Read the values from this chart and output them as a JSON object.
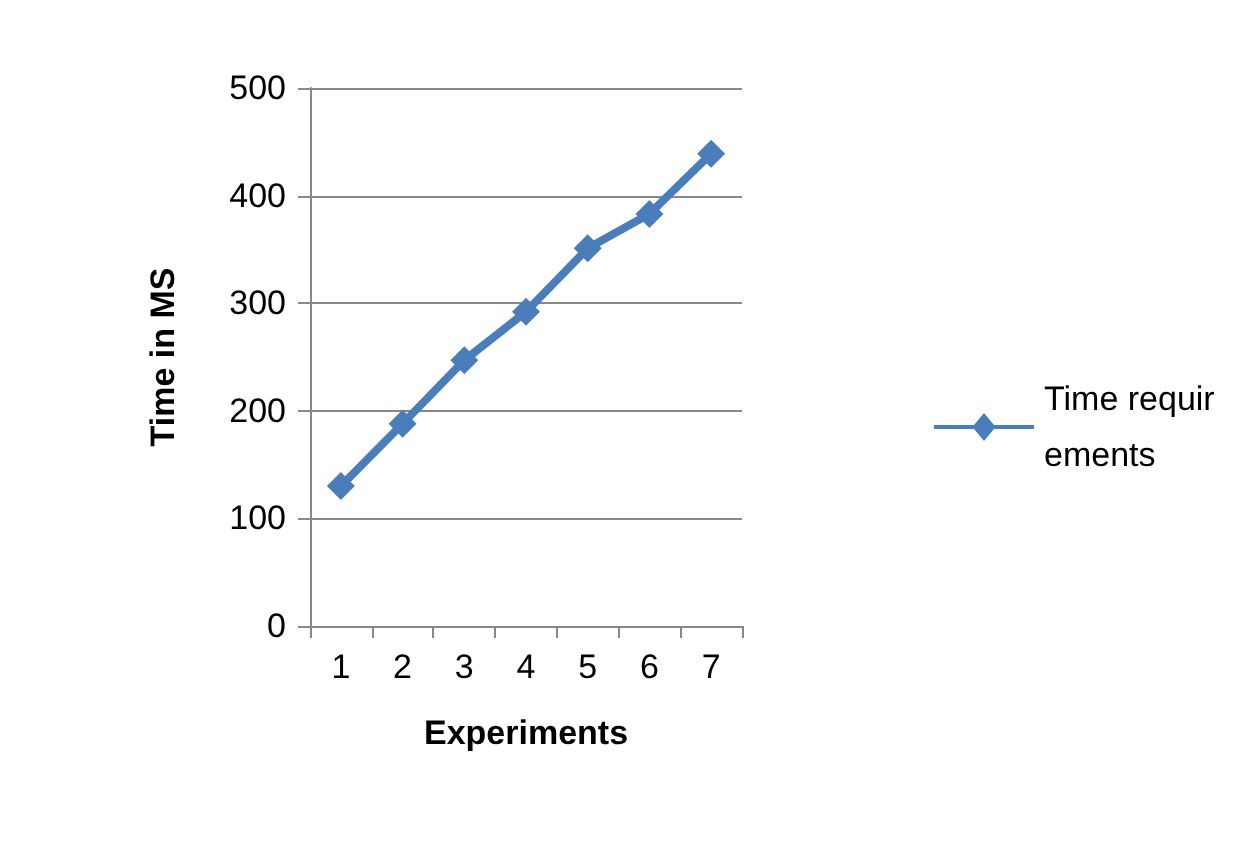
{
  "chart_data": {
    "type": "line",
    "xlabel": "Experiments",
    "ylabel": "Time in MS",
    "categories": [
      "1",
      "2",
      "3",
      "4",
      "5",
      "6",
      "7"
    ],
    "series": [
      {
        "name": "Time requirements",
        "color": "#4a7ebb",
        "values": [
          130,
          188,
          247,
          292,
          351,
          383,
          439
        ]
      }
    ],
    "ylim": [
      0,
      500
    ],
    "yticks": [
      0,
      100,
      200,
      300,
      400,
      500
    ],
    "grid": "y",
    "legend": "right",
    "marker": "diamond",
    "line_style": "solid"
  }
}
